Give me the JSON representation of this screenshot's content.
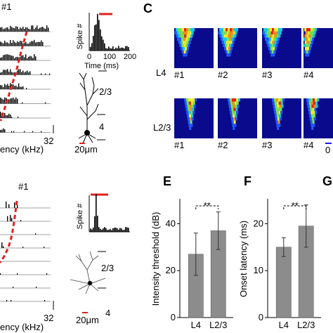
{
  "panel_letters": {
    "C": "C",
    "E": "E",
    "F": "F",
    "G": "G"
  },
  "panel_A": {
    "cell": "#1",
    "freq_end": "32",
    "xlabel_partial": "ency (kHz)",
    "psth_ylabel": "Spike #",
    "psth_xlabel": "Time (ms)",
    "psth_ticks": [
      "0",
      "100",
      "200"
    ],
    "layer_upper": "2/3",
    "layer_lower": "4",
    "scale": "20μm"
  },
  "panel_B": {
    "cell": "#1",
    "freq_end": "32",
    "xlabel_partial": "ency (kHz)",
    "psth_ylabel": "Spike #",
    "layer_upper": "2/3",
    "layer_lower": "4",
    "scale": "20μm"
  },
  "panel_C": {
    "rows": [
      "L4",
      "L2/3"
    ],
    "cells": [
      "#1",
      "#2",
      "#3",
      "#4"
    ],
    "scale_partial": "0"
  },
  "colors": {
    "bar": "#8c8c8c",
    "red": "#e02020",
    "map_bg": "#0a0a8c"
  },
  "chart_data": [
    {
      "type": "bar",
      "panel": "E",
      "categories": [
        "L4",
        "L2/3"
      ],
      "values": [
        27,
        37
      ],
      "errors": [
        9,
        8
      ],
      "ylabel": "Intensity threshold (dB)",
      "yticks": [
        "0",
        "20",
        "40"
      ],
      "ylim": [
        0,
        50
      ],
      "significance": "**"
    },
    {
      "type": "bar",
      "panel": "F",
      "categories": [
        "L4",
        "L2/3"
      ],
      "values": [
        15,
        19.5
      ],
      "errors": [
        2,
        4.5
      ],
      "ylabel": "Onset latency (ms)",
      "yticks": [
        "0",
        "10",
        "20"
      ],
      "ylim": [
        0,
        25
      ],
      "significance": "**"
    }
  ]
}
